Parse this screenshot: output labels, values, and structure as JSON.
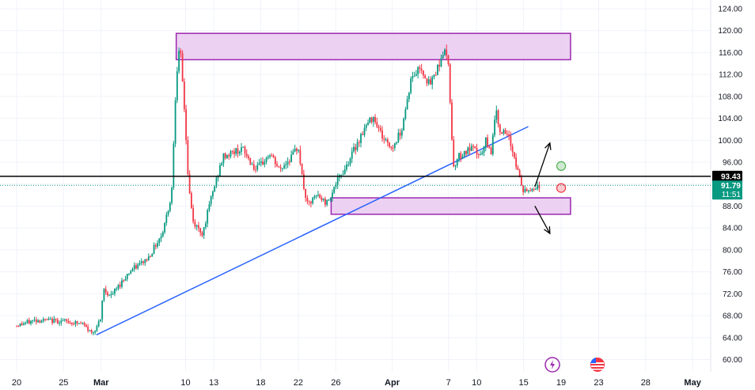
{
  "chart_data": {
    "type": "candlestick",
    "colors": {
      "up": "#089981",
      "down": "#f23645",
      "trendline": "#2962ff",
      "zone_fill": "#e9c9f0",
      "zone_border": "#9c27b0",
      "level_line": "#000000",
      "current_line": "#089981",
      "grid": "#f0f3fa"
    },
    "y_axis": {
      "range": [
        57,
        125
      ],
      "ticks": [
        "124.00",
        "120.00",
        "116.00",
        "112.00",
        "108.00",
        "104.00",
        "100.00",
        "96.00",
        "92.00",
        "88.00",
        "84.00",
        "80.00",
        "76.00",
        "72.00",
        "68.00",
        "64.00",
        "60.00"
      ]
    },
    "x_axis": {
      "range_days": [
        0,
        73
      ],
      "ticks": [
        {
          "label": "20",
          "day": 0
        },
        {
          "label": "25",
          "day": 5
        },
        {
          "label": "Mar",
          "day": 9,
          "bold": true
        },
        {
          "label": "10",
          "day": 18
        },
        {
          "label": "13",
          "day": 21
        },
        {
          "label": "18",
          "day": 26
        },
        {
          "label": "22",
          "day": 30
        },
        {
          "label": "26",
          "day": 34
        },
        {
          "label": "Apr",
          "day": 40,
          "bold": true
        },
        {
          "label": "7",
          "day": 46
        },
        {
          "label": "10",
          "day": 49
        },
        {
          "label": "15",
          "day": 54
        },
        {
          "label": "19",
          "day": 58
        },
        {
          "label": "23",
          "day": 62
        },
        {
          "label": "28",
          "day": 67
        },
        {
          "label": "May",
          "day": 72,
          "bold": true
        }
      ]
    },
    "price_path": [
      [
        0,
        66.2
      ],
      [
        2,
        67.2
      ],
      [
        5,
        67.0
      ],
      [
        7,
        66.5
      ],
      [
        8,
        64.8
      ],
      [
        9,
        67.2
      ],
      [
        9.2,
        73.0
      ],
      [
        10,
        71.5
      ],
      [
        12,
        76.0
      ],
      [
        14,
        78.5
      ],
      [
        15.5,
        83.0
      ],
      [
        16.5,
        90.0
      ],
      [
        17,
        112.0
      ],
      [
        17.4,
        117.0
      ],
      [
        17.9,
        105.0
      ],
      [
        18.3,
        92.0
      ],
      [
        18.8,
        85.0
      ],
      [
        19.8,
        83.0
      ],
      [
        20.8,
        90.0
      ],
      [
        22,
        97.0
      ],
      [
        24,
        98.5
      ],
      [
        25.5,
        94.5
      ],
      [
        27,
        97.5
      ],
      [
        28,
        94.5
      ],
      [
        29.5,
        97.5
      ],
      [
        30,
        99.0
      ],
      [
        30.5,
        92.0
      ],
      [
        31,
        88.0
      ],
      [
        32,
        90.0
      ],
      [
        33,
        88.5
      ],
      [
        34,
        92.0
      ],
      [
        35,
        95.0
      ],
      [
        37,
        102.0
      ],
      [
        38,
        104.5
      ],
      [
        39,
        100.5
      ],
      [
        40,
        98.5
      ],
      [
        41,
        102.0
      ],
      [
        42,
        111.0
      ],
      [
        43,
        113.5
      ],
      [
        44,
        110.0
      ],
      [
        45,
        114.0
      ],
      [
        45.5,
        116.5
      ],
      [
        46,
        114.0
      ],
      [
        46.5,
        95.0
      ],
      [
        47,
        97.0
      ],
      [
        48.5,
        98.5
      ],
      [
        49.5,
        97.0
      ],
      [
        50,
        100.0
      ],
      [
        50.5,
        97.5
      ],
      [
        51,
        105.5
      ],
      [
        51.5,
        102.0
      ],
      [
        52.5,
        100.0
      ],
      [
        53,
        97.0
      ],
      [
        53.5,
        93.5
      ],
      [
        54,
        90.5
      ],
      [
        55,
        91.2
      ],
      [
        55.7,
        91.8
      ]
    ],
    "annotations": {
      "resistance_zone": {
        "y_top": 119.5,
        "y_bottom": 114.7,
        "x_start": 17.0,
        "x_end": 59.0
      },
      "support_zone": {
        "y_top": 89.5,
        "y_bottom": 86.5,
        "x_start": 33.5,
        "x_end": 59.0
      },
      "trendline": {
        "points": [
          [
            8.5,
            64.5
          ],
          [
            54.5,
            102.5
          ]
        ]
      },
      "horizontal_level": {
        "value": 93.43
      },
      "current_price": {
        "value": 91.79
      },
      "arrow_up": {
        "from": [
          55.2,
          91.5
        ],
        "to": [
          56.8,
          99.5
        ]
      },
      "arrow_down": {
        "from": [
          55.2,
          88.0
        ],
        "to": [
          56.8,
          83.0
        ]
      },
      "markers": [
        {
          "day": 58.0,
          "value": 95.3,
          "color": "#4caf50"
        },
        {
          "day": 58.0,
          "value": 91.3,
          "color": "#f23645"
        }
      ]
    },
    "price_labels": {
      "level": "93.43",
      "last": "91.79",
      "countdown": "11:51"
    }
  }
}
